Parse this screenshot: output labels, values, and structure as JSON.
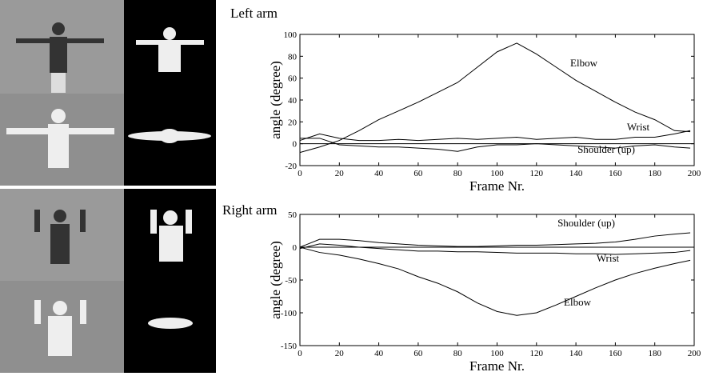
{
  "chart_data": [
    {
      "type": "line",
      "title": "Left arm",
      "x_label": "Frame Nr.",
      "y_label": "angle (degree)",
      "x": [
        0,
        10,
        20,
        30,
        40,
        50,
        60,
        70,
        80,
        90,
        100,
        110,
        120,
        130,
        140,
        150,
        160,
        170,
        180,
        190,
        198
      ],
      "xlim": [
        0,
        200
      ],
      "xticks": [
        0,
        20,
        40,
        60,
        80,
        100,
        120,
        140,
        160,
        180,
        200
      ],
      "ylim": [
        -20,
        100
      ],
      "yticks": [
        -20,
        0,
        20,
        40,
        60,
        80,
        100
      ],
      "hline": 0,
      "series": [
        {
          "name": "Elbow",
          "color": "#000000",
          "values": [
            -8,
            -3,
            3,
            12,
            22,
            30,
            38,
            47,
            56,
            70,
            84,
            92,
            82,
            70,
            58,
            48,
            38,
            29,
            22,
            12,
            11
          ]
        },
        {
          "name": "Wrist",
          "color": "#000000",
          "values": [
            3,
            9,
            5,
            3,
            3,
            4,
            3,
            4,
            5,
            4,
            5,
            6,
            4,
            5,
            6,
            4,
            4,
            6,
            6,
            9,
            12
          ]
        },
        {
          "name": "Shoulder (up)",
          "color": "#000000",
          "values": [
            5,
            5,
            -1,
            -2,
            -3,
            -3,
            -4,
            -5,
            -7,
            -3,
            -1,
            -1,
            0,
            -1,
            -2,
            -3,
            -4,
            -2,
            -1,
            -3,
            -4
          ]
        }
      ]
    },
    {
      "type": "line",
      "title": "Right arm",
      "x_label": "Frame Nr.",
      "y_label": "angle (degree)",
      "x": [
        0,
        10,
        20,
        30,
        40,
        50,
        60,
        70,
        80,
        90,
        100,
        110,
        120,
        130,
        140,
        150,
        160,
        170,
        180,
        190,
        198
      ],
      "xlim": [
        0,
        200
      ],
      "xticks": [
        0,
        20,
        40,
        60,
        80,
        100,
        120,
        140,
        160,
        180,
        200
      ],
      "ylim": [
        -150,
        50
      ],
      "yticks": [
        -150,
        -100,
        -50,
        0,
        50
      ],
      "hline": 0,
      "series": [
        {
          "name": "Shoulder (up)",
          "color": "#000000",
          "values": [
            0,
            12,
            12,
            10,
            7,
            5,
            3,
            2,
            1,
            1,
            2,
            3,
            3,
            4,
            5,
            6,
            8,
            12,
            17,
            20,
            22
          ]
        },
        {
          "name": "Wrist",
          "color": "#000000",
          "values": [
            -2,
            5,
            3,
            0,
            -2,
            -4,
            -6,
            -6,
            -7,
            -7,
            -8,
            -9,
            -9,
            -9,
            -10,
            -10,
            -11,
            -10,
            -9,
            -8,
            -5
          ]
        },
        {
          "name": "Elbow",
          "color": "#000000",
          "values": [
            0,
            -8,
            -12,
            -18,
            -25,
            -33,
            -45,
            -55,
            -68,
            -85,
            -98,
            -104,
            -100,
            -88,
            -75,
            -62,
            -50,
            -40,
            -32,
            -25,
            -20
          ]
        }
      ]
    }
  ]
}
